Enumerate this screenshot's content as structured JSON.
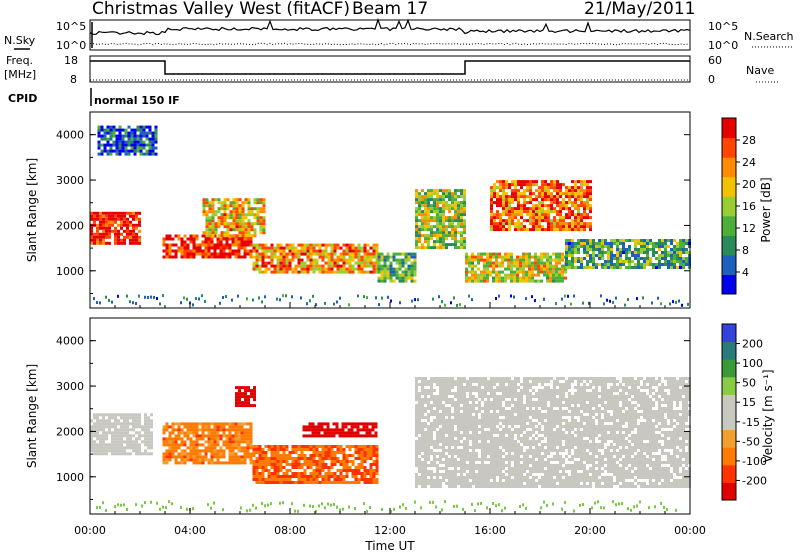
{
  "header": {
    "station": "Christmas Valley West (fitACF)",
    "beam": "Beam 17",
    "date": "21/May/2011"
  },
  "top_panels": {
    "nsky_label": "N.Sky",
    "nsearch_label": "N.Search",
    "nsky_ticks": [
      "10^5",
      "10^0"
    ],
    "nsearch_ticks": [
      "10^5",
      "10^0"
    ],
    "freq_label_line1": "Freq.",
    "freq_label_line2": "[MHz]",
    "freq_ticks": [
      "18",
      "8"
    ],
    "nave_label": "Nave",
    "nave_ticks": [
      "60",
      "0"
    ],
    "cpid_label": "CPID",
    "cpid_value": "normal 150 IF"
  },
  "colors": {
    "power_scale": [
      "#0000ee",
      "#1f5fbf",
      "#2a8a5a",
      "#4caf3a",
      "#9acd32",
      "#f2c200",
      "#ff8c00",
      "#ff4500",
      "#e60000"
    ],
    "velocity_scale": [
      "#3344dd",
      "#2a7a7a",
      "#3a9a3a",
      "#88cc44",
      "#c8c8c0",
      "#c8c8c0",
      "#f0a030",
      "#ff7a00",
      "#ff3300",
      "#e00000"
    ]
  },
  "chart_data": [
    {
      "type": "heatmap",
      "title": "Power",
      "xlabel": "Time UT",
      "ylabel": "Slant Range [km]",
      "xlim": [
        0,
        24
      ],
      "ylim": [
        180,
        4500
      ],
      "x_ticks": [
        "00:00",
        "04:00",
        "08:00",
        "12:00",
        "16:00",
        "20:00",
        "00:00"
      ],
      "y_ticks": [
        "1000",
        "2000",
        "3000",
        "4000"
      ],
      "colorbar_label": "Power [dB]",
      "colorbar_ticks": [
        "4",
        "8",
        "12",
        "16",
        "20",
        "24",
        "28"
      ],
      "regions": [
        {
          "t": [
            0.0,
            2.0
          ],
          "range": [
            1600,
            2300
          ],
          "value": 28
        },
        {
          "t": [
            0.3,
            2.7
          ],
          "range": [
            3600,
            4200
          ],
          "value": 6
        },
        {
          "t": [
            2.9,
            6.5
          ],
          "range": [
            1300,
            1800
          ],
          "value": 28
        },
        {
          "t": [
            4.5,
            7.0
          ],
          "range": [
            1800,
            2600
          ],
          "value": 20
        },
        {
          "t": [
            6.5,
            11.5
          ],
          "range": [
            1000,
            1600
          ],
          "value": 22
        },
        {
          "t": [
            11.5,
            13.0
          ],
          "range": [
            800,
            1400
          ],
          "value": 12
        },
        {
          "t": [
            13.0,
            15.0
          ],
          "range": [
            1500,
            2800
          ],
          "value": 16
        },
        {
          "t": [
            15.0,
            19.0
          ],
          "range": [
            800,
            1400
          ],
          "value": 18
        },
        {
          "t": [
            16.0,
            20.0
          ],
          "range": [
            1900,
            3000
          ],
          "value": 24
        },
        {
          "t": [
            19.0,
            24.0
          ],
          "range": [
            1100,
            1700
          ],
          "value": 12
        }
      ]
    },
    {
      "type": "heatmap",
      "title": "Velocity",
      "xlabel": "Time UT",
      "ylabel": "Slant Range [km]",
      "xlim": [
        0,
        24
      ],
      "ylim": [
        180,
        4500
      ],
      "x_ticks": [
        "00:00",
        "04:00",
        "08:00",
        "12:00",
        "16:00",
        "20:00",
        "00:00"
      ],
      "y_ticks": [
        "1000",
        "2000",
        "3000",
        "4000"
      ],
      "colorbar_label": "Velocity [m s⁻¹]",
      "colorbar_ticks": [
        "200",
        "100",
        "50",
        "15",
        "-15",
        "-50",
        "-100",
        "-200"
      ],
      "regions": [
        {
          "t": [
            0.0,
            2.5
          ],
          "range": [
            1500,
            2400
          ],
          "value": 0
        },
        {
          "t": [
            2.9,
            6.5
          ],
          "range": [
            1300,
            2200
          ],
          "value": -50
        },
        {
          "t": [
            5.8,
            6.6
          ],
          "range": [
            2600,
            3000
          ],
          "value": -200
        },
        {
          "t": [
            6.5,
            11.5
          ],
          "range": [
            900,
            1700
          ],
          "value": -70
        },
        {
          "t": [
            8.5,
            11.5
          ],
          "range": [
            1900,
            2200
          ],
          "value": -200
        },
        {
          "t": [
            13.0,
            24.0
          ],
          "range": [
            800,
            3200
          ],
          "value": 0
        }
      ]
    }
  ]
}
